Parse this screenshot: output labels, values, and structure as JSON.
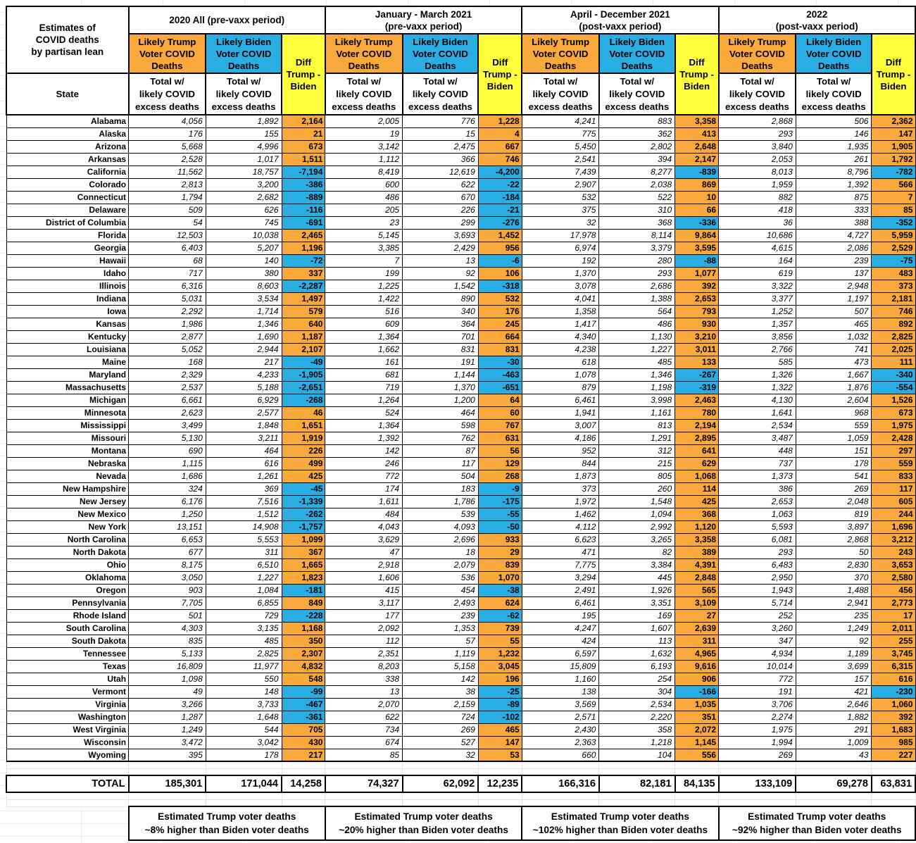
{
  "title": "Estimates of\nCOVID deaths\nby partisan lean",
  "labels": {
    "state": "State",
    "trump": "Likely Trump\nVoter COVID\nDeaths",
    "biden": "Likely Biden\nVoter COVID\nDeaths",
    "diff": "Diff\nTrump -\nBiden",
    "total_note": "Total w/\nlikely COVID\nexcess deaths"
  },
  "periods": [
    {
      "title": "2020 All (pre-vaxx period)"
    },
    {
      "title": "January - March 2021\n(pre-vaxx period)"
    },
    {
      "title": "April - December 2021\n(post-vaxx period)"
    },
    {
      "title": "2022\n(post-vaxx period)"
    }
  ],
  "colors": {
    "trump_orange": "#F9A93B",
    "biden_blue": "#29ADE3",
    "diff_yellow": "#FFFF3B"
  },
  "rows": [
    {
      "state": "Alabama",
      "values": [
        "4,056",
        "1,892",
        "2,164",
        "2,005",
        "776",
        "1,228",
        "4,241",
        "883",
        "3,358",
        "2,868",
        "506",
        "2,362"
      ]
    },
    {
      "state": "Alaska",
      "values": [
        "176",
        "155",
        "21",
        "19",
        "15",
        "4",
        "775",
        "362",
        "413",
        "293",
        "146",
        "147"
      ]
    },
    {
      "state": "Arizona",
      "values": [
        "5,668",
        "4,996",
        "673",
        "3,142",
        "2,475",
        "667",
        "5,450",
        "2,802",
        "2,648",
        "3,840",
        "1,935",
        "1,905"
      ]
    },
    {
      "state": "Arkansas",
      "values": [
        "2,528",
        "1,017",
        "1,511",
        "1,112",
        "366",
        "746",
        "2,541",
        "394",
        "2,147",
        "2,053",
        "261",
        "1,792"
      ]
    },
    {
      "state": "California",
      "values": [
        "11,562",
        "18,757",
        "-7,194",
        "8,419",
        "12,619",
        "-4,200",
        "7,439",
        "8,277",
        "-839",
        "8,013",
        "8,796",
        "-782"
      ]
    },
    {
      "state": "Colorado",
      "values": [
        "2,813",
        "3,200",
        "-386",
        "600",
        "622",
        "-22",
        "2,907",
        "2,038",
        "869",
        "1,959",
        "1,392",
        "566"
      ]
    },
    {
      "state": "Connecticut",
      "values": [
        "1,794",
        "2,682",
        "-889",
        "486",
        "670",
        "-184",
        "532",
        "522",
        "10",
        "882",
        "875",
        "7"
      ]
    },
    {
      "state": "Delaware",
      "values": [
        "509",
        "626",
        "-116",
        "205",
        "226",
        "-21",
        "375",
        "310",
        "66",
        "418",
        "333",
        "85"
      ]
    },
    {
      "state": "District of Columbia",
      "values": [
        "54",
        "745",
        "-691",
        "23",
        "299",
        "-276",
        "32",
        "368",
        "-336",
        "36",
        "388",
        "-352"
      ]
    },
    {
      "state": "Florida",
      "values": [
        "12,503",
        "10,038",
        "2,465",
        "5,145",
        "3,693",
        "1,452",
        "17,978",
        "8,114",
        "9,864",
        "10,686",
        "4,727",
        "5,959"
      ]
    },
    {
      "state": "Georgia",
      "values": [
        "6,403",
        "5,207",
        "1,196",
        "3,385",
        "2,429",
        "956",
        "6,974",
        "3,379",
        "3,595",
        "4,615",
        "2,086",
        "2,529"
      ]
    },
    {
      "state": "Hawaii",
      "values": [
        "68",
        "140",
        "-72",
        "7",
        "13",
        "-6",
        "192",
        "280",
        "-88",
        "164",
        "239",
        "-75"
      ]
    },
    {
      "state": "Idaho",
      "values": [
        "717",
        "380",
        "337",
        "199",
        "92",
        "106",
        "1,370",
        "293",
        "1,077",
        "619",
        "137",
        "483"
      ]
    },
    {
      "state": "Illinois",
      "values": [
        "6,316",
        "8,603",
        "-2,287",
        "1,225",
        "1,542",
        "-318",
        "3,078",
        "2,686",
        "392",
        "3,322",
        "2,948",
        "373"
      ]
    },
    {
      "state": "Indiana",
      "values": [
        "5,031",
        "3,534",
        "1,497",
        "1,422",
        "890",
        "532",
        "4,041",
        "1,388",
        "2,653",
        "3,377",
        "1,197",
        "2,181"
      ]
    },
    {
      "state": "Iowa",
      "values": [
        "2,292",
        "1,714",
        "579",
        "516",
        "340",
        "176",
        "1,358",
        "564",
        "793",
        "1,252",
        "507",
        "746"
      ]
    },
    {
      "state": "Kansas",
      "values": [
        "1,986",
        "1,346",
        "640",
        "609",
        "364",
        "245",
        "1,417",
        "486",
        "930",
        "1,357",
        "465",
        "892"
      ]
    },
    {
      "state": "Kentucky",
      "values": [
        "2,877",
        "1,690",
        "1,187",
        "1,364",
        "701",
        "664",
        "4,340",
        "1,130",
        "3,210",
        "3,856",
        "1,032",
        "2,825"
      ]
    },
    {
      "state": "Louisiana",
      "values": [
        "5,052",
        "2,944",
        "2,107",
        "1,662",
        "831",
        "831",
        "4,238",
        "1,227",
        "3,011",
        "2,766",
        "741",
        "2,025"
      ]
    },
    {
      "state": "Maine",
      "values": [
        "168",
        "217",
        "-49",
        "161",
        "191",
        "-30",
        "618",
        "485",
        "133",
        "585",
        "473",
        "111"
      ]
    },
    {
      "state": "Maryland",
      "values": [
        "2,329",
        "4,233",
        "-1,905",
        "681",
        "1,144",
        "-463",
        "1,078",
        "1,346",
        "-267",
        "1,326",
        "1,667",
        "-340"
      ]
    },
    {
      "state": "Massachusetts",
      "values": [
        "2,537",
        "5,188",
        "-2,651",
        "719",
        "1,370",
        "-651",
        "879",
        "1,198",
        "-319",
        "1,322",
        "1,876",
        "-554"
      ]
    },
    {
      "state": "Michigan",
      "values": [
        "6,661",
        "6,929",
        "-268",
        "1,264",
        "1,200",
        "64",
        "6,461",
        "3,998",
        "2,463",
        "4,130",
        "2,604",
        "1,526"
      ]
    },
    {
      "state": "Minnesota",
      "values": [
        "2,623",
        "2,577",
        "46",
        "524",
        "464",
        "60",
        "1,941",
        "1,161",
        "780",
        "1,641",
        "968",
        "673"
      ]
    },
    {
      "state": "Mississippi",
      "values": [
        "3,499",
        "1,848",
        "1,651",
        "1,364",
        "598",
        "767",
        "3,007",
        "813",
        "2,194",
        "2,534",
        "559",
        "1,975"
      ]
    },
    {
      "state": "Missouri",
      "values": [
        "5,130",
        "3,211",
        "1,919",
        "1,392",
        "762",
        "631",
        "4,186",
        "1,291",
        "2,895",
        "3,487",
        "1,059",
        "2,428"
      ]
    },
    {
      "state": "Montana",
      "values": [
        "690",
        "464",
        "226",
        "142",
        "87",
        "56",
        "952",
        "312",
        "641",
        "448",
        "151",
        "297"
      ]
    },
    {
      "state": "Nebraska",
      "values": [
        "1,115",
        "616",
        "499",
        "246",
        "117",
        "129",
        "844",
        "215",
        "629",
        "737",
        "178",
        "559"
      ]
    },
    {
      "state": "Nevada",
      "values": [
        "1,686",
        "1,261",
        "425",
        "772",
        "504",
        "268",
        "1,873",
        "805",
        "1,068",
        "1,373",
        "541",
        "833"
      ]
    },
    {
      "state": "New Hampshire",
      "values": [
        "324",
        "369",
        "-45",
        "174",
        "183",
        "-9",
        "373",
        "260",
        "114",
        "386",
        "269",
        "117"
      ]
    },
    {
      "state": "New Jersey",
      "values": [
        "6,176",
        "7,516",
        "-1,339",
        "1,611",
        "1,786",
        "-175",
        "1,972",
        "1,548",
        "425",
        "2,653",
        "2,048",
        "605"
      ]
    },
    {
      "state": "New Mexico",
      "values": [
        "1,250",
        "1,512",
        "-262",
        "484",
        "539",
        "-55",
        "1,462",
        "1,094",
        "368",
        "1,063",
        "819",
        "244"
      ]
    },
    {
      "state": "New York",
      "values": [
        "13,151",
        "14,908",
        "-1,757",
        "4,043",
        "4,093",
        "-50",
        "4,112",
        "2,992",
        "1,120",
        "5,593",
        "3,897",
        "1,696"
      ]
    },
    {
      "state": "North Carolina",
      "values": [
        "6,653",
        "5,553",
        "1,099",
        "3,629",
        "2,696",
        "933",
        "6,623",
        "3,265",
        "3,358",
        "6,081",
        "2,868",
        "3,212"
      ]
    },
    {
      "state": "North Dakota",
      "values": [
        "677",
        "311",
        "367",
        "47",
        "18",
        "29",
        "471",
        "82",
        "389",
        "293",
        "50",
        "243"
      ]
    },
    {
      "state": "Ohio",
      "values": [
        "8,175",
        "6,510",
        "1,665",
        "2,918",
        "2,079",
        "839",
        "7,775",
        "3,384",
        "4,391",
        "6,483",
        "2,830",
        "3,653"
      ]
    },
    {
      "state": "Oklahoma",
      "values": [
        "3,050",
        "1,227",
        "1,823",
        "1,606",
        "536",
        "1,070",
        "3,294",
        "445",
        "2,848",
        "2,950",
        "370",
        "2,580"
      ]
    },
    {
      "state": "Oregon",
      "values": [
        "903",
        "1,084",
        "-181",
        "415",
        "454",
        "-38",
        "2,491",
        "1,926",
        "565",
        "1,943",
        "1,488",
        "456"
      ]
    },
    {
      "state": "Pennsylvania",
      "values": [
        "7,705",
        "6,855",
        "849",
        "3,117",
        "2,493",
        "624",
        "6,461",
        "3,351",
        "3,109",
        "5,714",
        "2,941",
        "2,773"
      ]
    },
    {
      "state": "Rhode Island",
      "values": [
        "501",
        "729",
        "-228",
        "177",
        "239",
        "-62",
        "195",
        "169",
        "27",
        "252",
        "235",
        "17"
      ]
    },
    {
      "state": "South Carolina",
      "values": [
        "4,303",
        "3,135",
        "1,168",
        "2,092",
        "1,353",
        "739",
        "4,247",
        "1,607",
        "2,639",
        "3,260",
        "1,249",
        "2,011"
      ]
    },
    {
      "state": "South Dakota",
      "values": [
        "835",
        "485",
        "350",
        "112",
        "57",
        "55",
        "424",
        "113",
        "311",
        "347",
        "92",
        "255"
      ]
    },
    {
      "state": "Tennessee",
      "values": [
        "5,133",
        "2,825",
        "2,307",
        "2,351",
        "1,119",
        "1,232",
        "6,597",
        "1,632",
        "4,965",
        "4,934",
        "1,189",
        "3,745"
      ]
    },
    {
      "state": "Texas",
      "values": [
        "16,809",
        "11,977",
        "4,832",
        "8,203",
        "5,158",
        "3,045",
        "15,809",
        "6,193",
        "9,616",
        "10,014",
        "3,699",
        "6,315"
      ]
    },
    {
      "state": "Utah",
      "values": [
        "1,098",
        "550",
        "548",
        "338",
        "142",
        "196",
        "1,160",
        "254",
        "906",
        "772",
        "157",
        "616"
      ]
    },
    {
      "state": "Vermont",
      "values": [
        "49",
        "148",
        "-99",
        "13",
        "38",
        "-25",
        "138",
        "304",
        "-166",
        "191",
        "421",
        "-230"
      ]
    },
    {
      "state": "Virginia",
      "values": [
        "3,266",
        "3,733",
        "-467",
        "2,070",
        "2,159",
        "-89",
        "3,569",
        "2,534",
        "1,035",
        "3,706",
        "2,646",
        "1,060"
      ]
    },
    {
      "state": "Washington",
      "values": [
        "1,287",
        "1,648",
        "-361",
        "622",
        "724",
        "-102",
        "2,571",
        "2,220",
        "351",
        "2,274",
        "1,882",
        "392"
      ]
    },
    {
      "state": "West Virginia",
      "values": [
        "1,249",
        "544",
        "705",
        "734",
        "269",
        "465",
        "2,430",
        "358",
        "2,072",
        "1,975",
        "291",
        "1,683"
      ]
    },
    {
      "state": "Wisconsin",
      "values": [
        "3,472",
        "3,042",
        "430",
        "674",
        "527",
        "147",
        "2,363",
        "1,218",
        "1,145",
        "1,994",
        "1,009",
        "985"
      ]
    },
    {
      "state": "Wyoming",
      "values": [
        "395",
        "178",
        "217",
        "85",
        "32",
        "53",
        "660",
        "104",
        "556",
        "269",
        "43",
        "227"
      ]
    }
  ],
  "total": {
    "label": "TOTAL",
    "values": [
      "185,301",
      "171,044",
      "14,258",
      "74,327",
      "62,092",
      "12,235",
      "166,316",
      "82,181",
      "84,135",
      "133,109",
      "69,278",
      "63,831"
    ]
  },
  "notes": [
    "Estimated Trump voter deaths\n~8% higher than Biden voter deaths",
    "Estimated Trump voter deaths\n~20% higher than Biden voter deaths",
    "Estimated Trump voter deaths\n~102% higher than Biden voter deaths",
    "Estimated Trump voter deaths\n~92% higher than Biden voter deaths"
  ]
}
